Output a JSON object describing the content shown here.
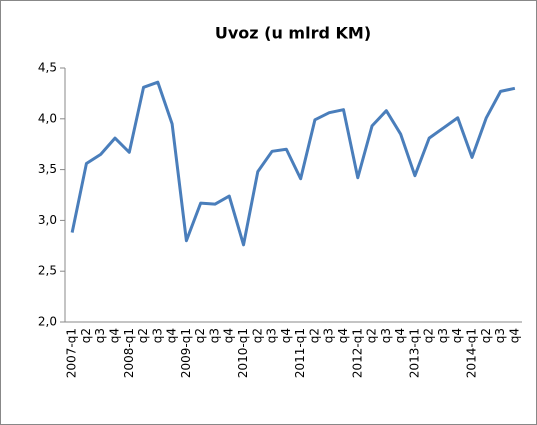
{
  "chart_data": {
    "type": "line",
    "title": "Uvoz (u mlrd KM)",
    "categories": [
      "2007-q1",
      "q2",
      "q3",
      "q4",
      "2008-q1",
      "q2",
      "q3",
      "q4",
      "2009-q1",
      "q2",
      "q3",
      "q4",
      "2010-q1",
      "q2",
      "q3",
      "q4",
      "2011-q1",
      "q2",
      "q3",
      "q4",
      "2012-q1",
      "q2",
      "q3",
      "q4",
      "2013-q1",
      "q2",
      "q3",
      "q4",
      "2014-q1",
      "q2",
      "q3",
      "q4"
    ],
    "values": [
      2.88,
      3.56,
      3.65,
      3.81,
      3.67,
      4.31,
      4.36,
      3.95,
      2.8,
      3.17,
      3.16,
      3.24,
      2.76,
      3.48,
      3.68,
      3.7,
      3.41,
      3.99,
      4.06,
      4.09,
      3.42,
      3.93,
      4.08,
      3.85,
      3.44,
      3.81,
      3.91,
      4.01,
      3.62,
      4.01,
      4.27,
      4.3
    ],
    "color": "#4a7ebb",
    "ylim": [
      2,
      4.5
    ],
    "yticks": [
      {
        "value": 2,
        "label": "2,0"
      },
      {
        "value": 2.5,
        "label": "2,5"
      },
      {
        "value": 3,
        "label": "3,0"
      },
      {
        "value": 3.5,
        "label": "3,5"
      },
      {
        "value": 4,
        "label": "4,0"
      },
      {
        "value": 4.5,
        "label": "4,5"
      }
    ],
    "grid": false
  }
}
